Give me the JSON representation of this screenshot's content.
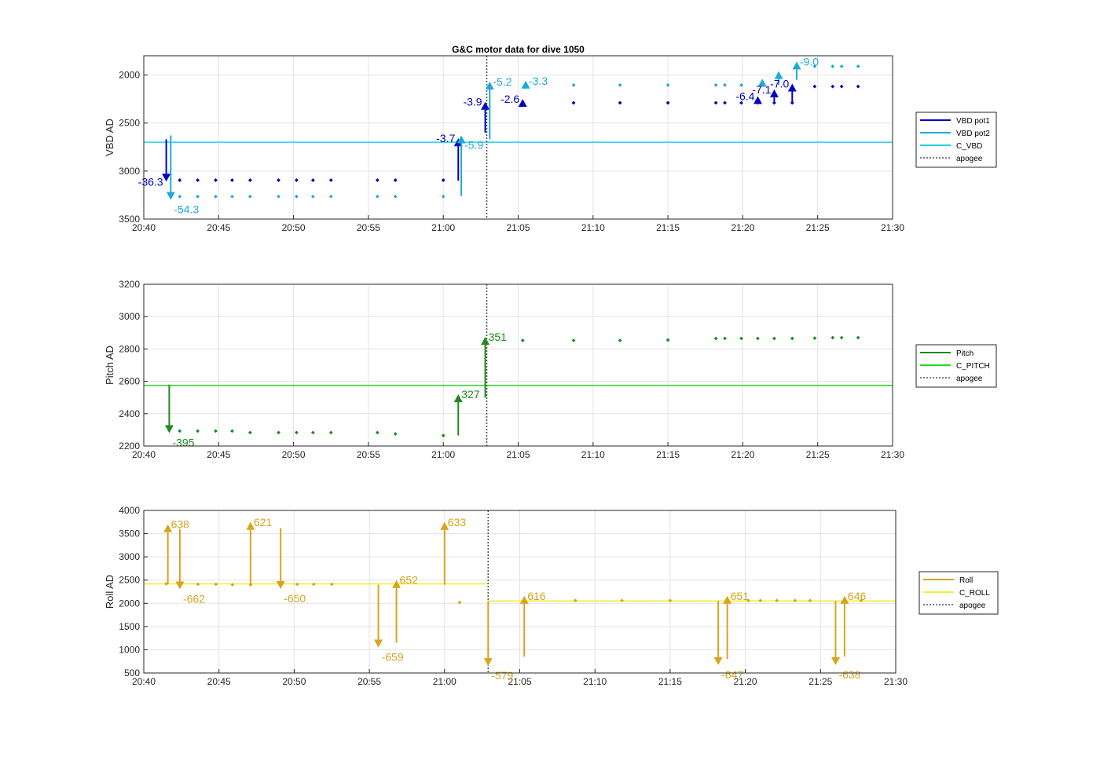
{
  "colors": {
    "vbd_pot1": "#0000c0",
    "vbd_pot2": "#1eaadc",
    "c_vbd": "#1ed2e6",
    "pitch": "#1f8a1f",
    "c_pitch": "#22dd22",
    "roll": "#d8a41e",
    "c_roll": "#f2ee3a",
    "apogee": "#555555"
  },
  "chart_data": [
    {
      "type": "line",
      "title": "G&C motor data for dive 1050",
      "xlabel": "",
      "ylabel": "VBD AD",
      "x_ticks": [
        "20:40",
        "20:45",
        "20:50",
        "20:55",
        "21:00",
        "21:05",
        "21:10",
        "21:15",
        "21:20",
        "21:25",
        "21:30"
      ],
      "xlim": [
        "20:40",
        "21:30"
      ],
      "y_ticks": [
        "2000",
        "2500",
        "3000",
        "3500"
      ],
      "ylim": [
        3500,
        1800
      ],
      "y_reversed": true,
      "grid": true,
      "legend_position": "right",
      "legend": [
        "VBD pot1",
        "VBD pot2",
        "C_VBD",
        "apogee"
      ],
      "apogee_time": "21:02.9",
      "reference_lines": [
        {
          "name": "C_VBD",
          "y": 2700
        }
      ],
      "series": [
        {
          "name": "VBD pot1",
          "marker": "diamond",
          "x": [
            "20:42.4",
            "20:43.6",
            "20:44.8",
            "20:45.9",
            "20:47.1",
            "20:49.0",
            "20:50.2",
            "20:51.3",
            "20:52.5",
            "20:55.6",
            "20:56.8",
            "21:00.0"
          ],
          "y": [
            3095,
            3095,
            3095,
            3095,
            3095,
            3095,
            3095,
            3095,
            3095,
            3095,
            3095,
            3095
          ]
        },
        {
          "name": "VBD pot1",
          "marker": "diamond",
          "x": [
            "21:08.7",
            "21:11.8",
            "21:15.0",
            "21:18.2",
            "21:18.8",
            "21:19.9",
            "21:21.0",
            "21:22.1",
            "21:23.3",
            "21:24.8",
            "21:26.0",
            "21:26.6",
            "21:27.7"
          ],
          "y": [
            2290,
            2290,
            2290,
            2290,
            2290,
            2290,
            2290,
            2290,
            2290,
            2120,
            2120,
            2120,
            2120
          ]
        },
        {
          "name": "VBD pot2",
          "marker": "diamond",
          "x": [
            "20:42.4",
            "20:43.6",
            "20:44.8",
            "20:45.9",
            "20:47.1",
            "20:49.0",
            "20:50.2",
            "20:51.3",
            "20:52.5",
            "20:55.6",
            "20:56.8",
            "21:00.0"
          ],
          "y": [
            3265,
            3265,
            3265,
            3265,
            3265,
            3265,
            3265,
            3265,
            3265,
            3265,
            3265,
            3265
          ]
        },
        {
          "name": "VBD pot2",
          "marker": "diamond",
          "x": [
            "21:08.7",
            "21:11.8",
            "21:15.0",
            "21:18.2",
            "21:18.8",
            "21:19.9",
            "21:24.8",
            "21:26.0",
            "21:26.6",
            "21:27.7"
          ],
          "y": [
            2105,
            2105,
            2105,
            2105,
            2105,
            2105,
            1910,
            1910,
            1910,
            1910
          ]
        }
      ],
      "annotations": [
        {
          "series": "VBD pot1",
          "x": "20:41.5",
          "y_from": 2670,
          "y_to": 3110,
          "label": "-36.3",
          "label_side": "left",
          "dx": 0,
          "dy": 0
        },
        {
          "series": "VBD pot2",
          "x": "20:41.8",
          "y_from": 2630,
          "y_to": 3300,
          "label": "-54.3",
          "label_side": "below-right",
          "dx": 0,
          "dy": 0
        },
        {
          "series": "VBD pot1",
          "x": "21:01.0",
          "y_from": 3100,
          "y_to": 2660,
          "label": "-3.7",
          "label_side": "left",
          "dx": 0,
          "dy": 0
        },
        {
          "series": "VBD pot2",
          "x": "21:01.2",
          "y_from": 3260,
          "y_to": 2630,
          "label": "-5.9",
          "label_side": "below-right",
          "dx": 0,
          "dy": 0
        },
        {
          "series": "VBD pot1",
          "x": "21:02.8",
          "y_from": 2600,
          "y_to": 2280,
          "label": "-3.9",
          "label_side": "left",
          "dx": 0,
          "dy": 0
        },
        {
          "series": "VBD pot2",
          "x": "21:03.1",
          "y_from": 2670,
          "y_to": 2070,
          "label": "-5.2",
          "label_side": "right",
          "dx": 0,
          "dy": 0
        },
        {
          "series": "VBD pot1",
          "x": "21:05.3",
          "y_from": 2290,
          "y_to": 2250,
          "label": "-2.6",
          "label_side": "left",
          "dx": 0,
          "dy": 0
        },
        {
          "series": "VBD pot2",
          "x": "21:05.5",
          "y_from": 2105,
          "y_to": 2060,
          "label": "-3.3",
          "label_side": "right",
          "dx": 0,
          "dy": 0
        },
        {
          "series": "VBD pot1",
          "x": "21:21.0",
          "y_from": 2290,
          "y_to": 2220,
          "label": "-6.4",
          "label_side": "left",
          "dx": 0,
          "dy": 0
        },
        {
          "series": "VBD pot2",
          "x": "21:21.3",
          "y_from": 2105,
          "y_to": 2040,
          "label": "",
          "label_side": "right",
          "dx": 0,
          "dy": 0
        },
        {
          "series": "VBD pot1",
          "x": "21:22.1",
          "y_from": 2290,
          "y_to": 2150,
          "label": "-7.1",
          "label_side": "left",
          "dx": 0,
          "dy": 0
        },
        {
          "series": "VBD pot2",
          "x": "21:22.4",
          "y_from": 2105,
          "y_to": 1960,
          "label": "",
          "label_side": "right",
          "dx": 0,
          "dy": 0
        },
        {
          "series": "VBD pot1",
          "x": "21:23.3",
          "y_from": 2290,
          "y_to": 2090,
          "label": "-7.0",
          "label_side": "left",
          "dx": 0,
          "dy": 0
        },
        {
          "series": "VBD pot2",
          "x": "21:23.6",
          "y_from": 2050,
          "y_to": 1860,
          "label": "-9.0",
          "label_side": "right",
          "dx": 0,
          "dy": 0
        }
      ]
    },
    {
      "type": "line",
      "title": "",
      "xlabel": "",
      "ylabel": "Pitch AD",
      "x_ticks": [
        "20:40",
        "20:45",
        "20:50",
        "20:55",
        "21:00",
        "21:05",
        "21:10",
        "21:15",
        "21:20",
        "21:25",
        "21:30"
      ],
      "xlim": [
        "20:40",
        "21:30"
      ],
      "y_ticks": [
        "2200",
        "2400",
        "2600",
        "2800",
        "3000",
        "3200"
      ],
      "ylim": [
        2200,
        3200
      ],
      "grid": true,
      "legend_position": "right",
      "legend": [
        "Pitch",
        "C_PITCH",
        "apogee"
      ],
      "apogee_time": "21:02.9",
      "reference_lines": [
        {
          "name": "C_PITCH",
          "y": 2575
        }
      ],
      "series": [
        {
          "name": "Pitch",
          "marker": "diamond",
          "x": [
            "20:42.4",
            "20:43.6",
            "20:44.8",
            "20:45.9",
            "20:47.1",
            "20:49.0",
            "20:50.2",
            "20:51.3",
            "20:52.5",
            "20:55.6",
            "20:56.8",
            "21:00.0",
            "21:05.3",
            "21:08.7",
            "21:11.8",
            "21:15.0",
            "21:18.2",
            "21:18.8",
            "21:19.9",
            "21:21.0",
            "21:22.1",
            "21:23.3",
            "21:24.8",
            "21:26.0",
            "21:26.6",
            "21:27.7"
          ],
          "y": [
            2293,
            2293,
            2293,
            2293,
            2283,
            2283,
            2283,
            2283,
            2283,
            2283,
            2275,
            2265,
            2853,
            2853,
            2853,
            2855,
            2865,
            2865,
            2865,
            2865,
            2865,
            2865,
            2867,
            2870,
            2870,
            2870
          ]
        }
      ],
      "annotations": [
        {
          "series": "Pitch",
          "x": "20:41.7",
          "y_from": 2580,
          "y_to": 2280,
          "label": "-395",
          "label_side": "below-right",
          "dx": 0,
          "dy": 0
        },
        {
          "series": "Pitch",
          "x": "21:01.0",
          "y_from": 2265,
          "y_to": 2520,
          "label": "327",
          "label_side": "right",
          "dx": 0,
          "dy": 0
        },
        {
          "series": "Pitch",
          "x": "21:02.8",
          "y_from": 2500,
          "y_to": 2875,
          "label": "351",
          "label_side": "right",
          "dx": 0,
          "dy": 0
        }
      ]
    },
    {
      "type": "line",
      "title": "",
      "xlabel": "",
      "ylabel": "Roll AD",
      "x_ticks": [
        "20:40",
        "20:45",
        "20:50",
        "20:55",
        "21:00",
        "21:05",
        "21:10",
        "21:15",
        "21:20",
        "21:25",
        "21:30"
      ],
      "xlim": [
        "20:40",
        "21:30"
      ],
      "y_ticks": [
        "500",
        "1000",
        "1500",
        "2000",
        "2500",
        "3000",
        "3500",
        "4000"
      ],
      "ylim": [
        500,
        4000
      ],
      "grid": true,
      "legend_position": "right",
      "legend": [
        "Roll",
        "C_ROLL",
        "apogee"
      ],
      "apogee_time": "21:02.9",
      "reference_lines": [
        {
          "name": "C_ROLL",
          "y": 2420,
          "x_from": "20:40",
          "x_to": "21:02.9"
        },
        {
          "name": "C_ROLL",
          "y": 2050,
          "x_from": "21:02.9",
          "x_to": "21:30"
        }
      ],
      "series": [
        {
          "name": "Roll",
          "marker": "diamond",
          "x": [
            "20:41.5",
            "20:43.6",
            "20:44.8",
            "20:45.9",
            "20:47.1",
            "20:50.2",
            "20:51.3",
            "20:52.5",
            "21:01.0",
            "21:08.7",
            "21:11.8",
            "21:15.0",
            "21:20.2",
            "21:21.0",
            "21:22.1",
            "21:23.3",
            "21:24.3",
            "21:27.7"
          ],
          "y": [
            2420,
            2410,
            2410,
            2400,
            2400,
            2410,
            2410,
            2410,
            2020,
            2060,
            2060,
            2060,
            2060,
            2060,
            2060,
            2060,
            2060,
            2060
          ]
        }
      ],
      "annotations": [
        {
          "series": "Roll",
          "x": "20:41.6",
          "y_from": 2420,
          "y_to": 3700,
          "label": "638",
          "label_side": "right",
          "dx": 0,
          "dy": 0
        },
        {
          "series": "Roll",
          "x": "20:42.4",
          "y_from": 3600,
          "y_to": 2300,
          "label": "-662",
          "label_side": "below-right",
          "dx": 0,
          "dy": 0
        },
        {
          "series": "Roll",
          "x": "20:47.1",
          "y_from": 2400,
          "y_to": 3750,
          "label": "621",
          "label_side": "right",
          "dx": 0,
          "dy": 0
        },
        {
          "series": "Roll",
          "x": "20:49.1",
          "y_from": 3620,
          "y_to": 2310,
          "label": "-650",
          "label_side": "below-right",
          "dx": 0,
          "dy": 0
        },
        {
          "series": "Roll",
          "x": "20:55.6",
          "y_from": 2400,
          "y_to": 1050,
          "label": "-659",
          "label_side": "below-right",
          "dx": 0,
          "dy": 0
        },
        {
          "series": "Roll",
          "x": "20:56.8",
          "y_from": 1150,
          "y_to": 2500,
          "label": "652",
          "label_side": "right",
          "dx": 0,
          "dy": 0
        },
        {
          "series": "Roll",
          "x": "21:00.0",
          "y_from": 2400,
          "y_to": 3750,
          "label": "633",
          "label_side": "right",
          "dx": 0,
          "dy": 0
        },
        {
          "series": "Roll",
          "x": "21:02.9",
          "y_from": 2050,
          "y_to": 650,
          "label": "-579",
          "label_side": "below-right",
          "dx": 0,
          "dy": 0
        },
        {
          "series": "Roll",
          "x": "21:05.3",
          "y_from": 850,
          "y_to": 2160,
          "label": "616",
          "label_side": "right",
          "dx": 0,
          "dy": 0
        },
        {
          "series": "Roll",
          "x": "21:18.2",
          "y_from": 2050,
          "y_to": 670,
          "label": "-647",
          "label_side": "below-right",
          "dx": 0,
          "dy": 0
        },
        {
          "series": "Roll",
          "x": "21:18.8",
          "y_from": 800,
          "y_to": 2160,
          "label": "651",
          "label_side": "right",
          "dx": 0,
          "dy": 0
        },
        {
          "series": "Roll",
          "x": "21:26.0",
          "y_from": 2050,
          "y_to": 670,
          "label": "-638",
          "label_side": "below-right",
          "dx": 0,
          "dy": 0
        },
        {
          "series": "Roll",
          "x": "21:26.6",
          "y_from": 850,
          "y_to": 2160,
          "label": "646",
          "label_side": "right",
          "dx": 0,
          "dy": 0
        }
      ]
    }
  ]
}
